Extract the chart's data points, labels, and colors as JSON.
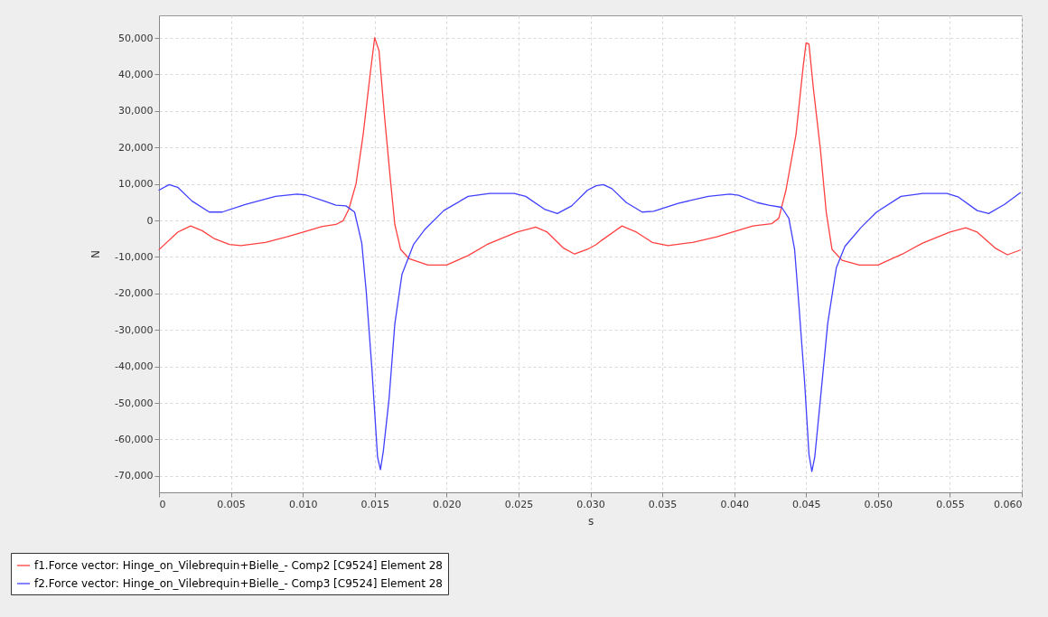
{
  "chart_data": {
    "type": "line",
    "xlabel": "s",
    "ylabel": "N",
    "xlim": [
      0,
      0.06
    ],
    "ylim": [
      -74500,
      56200
    ],
    "xticks": [
      0,
      {
        "value": 0.005,
        "label": "0.005"
      },
      {
        "value": 0.01,
        "label": "0.010"
      },
      {
        "value": 0.015,
        "label": "0.015"
      },
      {
        "value": 0.02,
        "label": "0.020"
      },
      {
        "value": 0.025,
        "label": "0.025"
      },
      {
        "value": 0.03,
        "label": "0.030"
      },
      {
        "value": 0.035,
        "label": "0.035"
      },
      {
        "value": 0.04,
        "label": "0.040"
      },
      {
        "value": 0.045,
        "label": "0.045"
      },
      {
        "value": 0.05,
        "label": "0.050"
      },
      {
        "value": 0.055,
        "label": "0.055"
      },
      {
        "value": 0.06,
        "label": "0.060"
      }
    ],
    "yticks": [
      {
        "value": -70000,
        "label": "-70,000"
      },
      {
        "value": -60000,
        "label": "-60,000"
      },
      {
        "value": -50000,
        "label": "-50,000"
      },
      {
        "value": -40000,
        "label": "-40,000"
      },
      {
        "value": -30000,
        "label": "-30,000"
      },
      {
        "value": -20000,
        "label": "-20,000"
      },
      {
        "value": -10000,
        "label": "-10,000"
      },
      0,
      {
        "value": 10000,
        "label": "10,000"
      },
      {
        "value": 20000,
        "label": "20,000"
      },
      {
        "value": 30000,
        "label": "30,000"
      },
      {
        "value": 40000,
        "label": "40,000"
      },
      {
        "value": 50000,
        "label": "50,000"
      }
    ],
    "grid": true,
    "legend": "bottom",
    "marker": "none",
    "line_style": "solid",
    "series": [
      {
        "name": "f1.Force vector: Hinge_on_Vilebrequin+Bielle_- Comp2 [C9524] Element 28",
        "color": "#ff4040",
        "x": [
          0,
          0.0013,
          0.0022,
          0.003,
          0.0038,
          0.0049,
          0.0057,
          0.0074,
          0.0089,
          0.0102,
          0.0113,
          0.0123,
          0.0128,
          0.0132,
          0.0137,
          0.0142,
          0.0147,
          0.015,
          0.0153,
          0.0157,
          0.0161,
          0.0164,
          0.0168,
          0.0174,
          0.0187,
          0.02,
          0.0215,
          0.0228,
          0.0249,
          0.0262,
          0.027,
          0.0281,
          0.0289,
          0.0298,
          0.0304,
          0.0308,
          0.0322,
          0.0332,
          0.0343,
          0.0354,
          0.0371,
          0.0388,
          0.0402,
          0.0413,
          0.0426,
          0.0431,
          0.0436,
          0.0443,
          0.0448,
          0.045,
          0.0452,
          0.0455,
          0.046,
          0.0464,
          0.0468,
          0.0475,
          0.0487,
          0.05,
          0.0517,
          0.0531,
          0.055,
          0.0561,
          0.0569,
          0.0582,
          0.059,
          0.0599
        ],
        "values": [
          -8000,
          -3200,
          -1500,
          -2800,
          -4900,
          -6600,
          -6900,
          -6000,
          -4500,
          -3000,
          -1700,
          -1100,
          -100,
          3100,
          10000,
          23600,
          40600,
          50100,
          46500,
          27800,
          10800,
          -1100,
          -7900,
          -10500,
          -12200,
          -12200,
          -9600,
          -6600,
          -3200,
          -1800,
          -3200,
          -7500,
          -9200,
          -7900,
          -6600,
          -5400,
          -1500,
          -3200,
          -6000,
          -6900,
          -6000,
          -4500,
          -2800,
          -1500,
          -900,
          600,
          8300,
          23600,
          42300,
          48700,
          48300,
          36400,
          19300,
          2300,
          -7900,
          -10900,
          -12200,
          -12200,
          -9200,
          -6200,
          -3200,
          -2000,
          -3200,
          -7700,
          -9400,
          -8100
        ]
      },
      {
        "name": "f2.Force vector: Hinge_on_Vilebrequin+Bielle_- Comp3 [C9524] Element 28",
        "color": "#4040ff",
        "x": [
          0,
          0.0007,
          0.0013,
          0.0023,
          0.0035,
          0.0044,
          0.006,
          0.0081,
          0.0096,
          0.0102,
          0.0115,
          0.0123,
          0.013,
          0.0136,
          0.0141,
          0.0144,
          0.0148,
          0.0152,
          0.0154,
          0.0156,
          0.016,
          0.0164,
          0.0169,
          0.0177,
          0.0185,
          0.0198,
          0.0215,
          0.023,
          0.0247,
          0.0255,
          0.0268,
          0.0277,
          0.0287,
          0.0298,
          0.0304,
          0.0309,
          0.0315,
          0.0325,
          0.0336,
          0.0344,
          0.0361,
          0.0382,
          0.0397,
          0.0403,
          0.0416,
          0.0424,
          0.0433,
          0.0438,
          0.0442,
          0.0445,
          0.0449,
          0.0452,
          0.0454,
          0.0456,
          0.046,
          0.0465,
          0.0471,
          0.0477,
          0.0488,
          0.0499,
          0.0516,
          0.0531,
          0.0548,
          0.0556,
          0.0569,
          0.0577,
          0.0588,
          0.0599
        ],
        "values": [
          8300,
          9800,
          9100,
          5300,
          2300,
          2300,
          4400,
          6600,
          7200,
          7000,
          5300,
          4200,
          4000,
          2300,
          -6200,
          -19000,
          -40300,
          -64900,
          -68300,
          -63200,
          -48800,
          -28300,
          -14700,
          -6600,
          -2400,
          2700,
          6600,
          7400,
          7400,
          6600,
          3100,
          1900,
          4000,
          8300,
          9500,
          9800,
          8700,
          4900,
          2300,
          2500,
          4700,
          6600,
          7200,
          6900,
          4900,
          4200,
          3600,
          600,
          -7900,
          -23200,
          -44500,
          -64100,
          -68800,
          -64900,
          -48800,
          -28300,
          -13000,
          -7100,
          -2000,
          2300,
          6600,
          7400,
          7400,
          6400,
          2700,
          1900,
          4400,
          7600
        ]
      }
    ]
  }
}
